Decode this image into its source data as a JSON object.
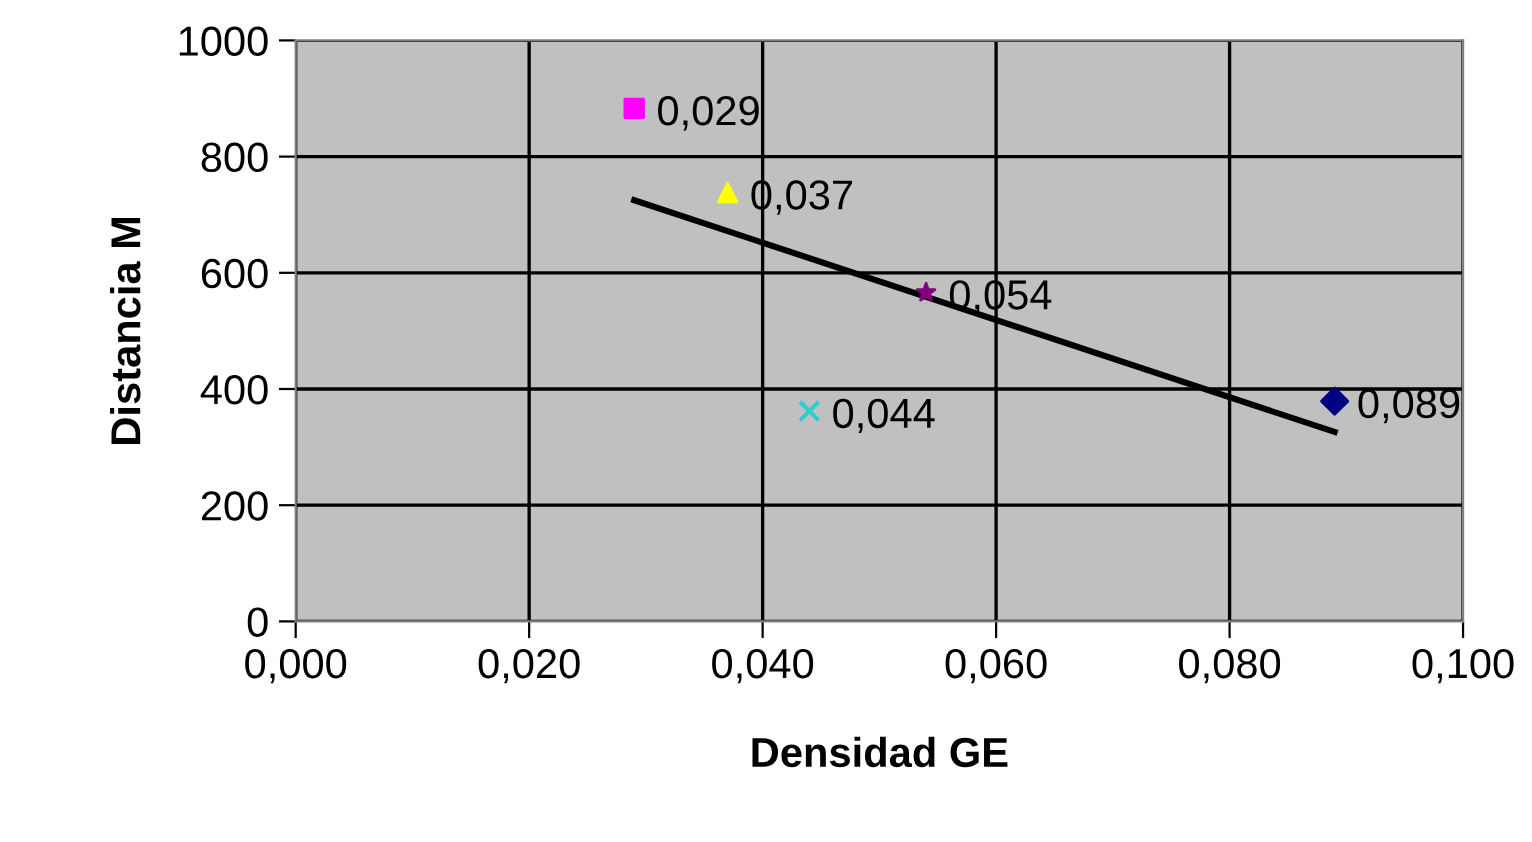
{
  "chart_data": {
    "type": "scatter",
    "xlabel": "Densidad GE",
    "ylabel": "Distancia M",
    "xlim": [
      0,
      0.1
    ],
    "ylim": [
      0,
      1000
    ],
    "xticks": [
      {
        "value": 0,
        "label": "0,000"
      },
      {
        "value": 0.02,
        "label": "0,020"
      },
      {
        "value": 0.04,
        "label": "0,040"
      },
      {
        "value": 0.06,
        "label": "0,060"
      },
      {
        "value": 0.08,
        "label": "0,080"
      },
      {
        "value": 0.1,
        "label": "0,100"
      }
    ],
    "yticks": [
      0,
      200,
      400,
      600,
      800,
      1000
    ],
    "grid": true,
    "series": [
      {
        "color": "#ff00ff",
        "marker": "square",
        "x": [
          0.029
        ],
        "values": [
          883
        ]
      },
      {
        "color": "#ffff00",
        "marker": "triangle",
        "x": [
          0.037
        ],
        "values": [
          738
        ]
      },
      {
        "color": "#800080",
        "marker": "star",
        "x": [
          0.054
        ],
        "values": [
          566
        ]
      },
      {
        "color": "#33cccc",
        "marker": "cross",
        "x": [
          0.044
        ],
        "values": [
          362
        ]
      },
      {
        "color": "#000080",
        "marker": "diamond",
        "x": [
          0.089
        ],
        "values": [
          379
        ]
      },
      {
        "type": "line",
        "color": "#000000",
        "marker": "none",
        "x": [
          0.029,
          0.089
        ],
        "values": [
          725,
          326
        ]
      }
    ],
    "annotations": [
      {
        "text": "0,029",
        "x": 0.029,
        "y": 883
      },
      {
        "text": "0,037",
        "x": 0.037,
        "y": 738
      },
      {
        "text": "0,054",
        "x": 0.054,
        "y": 566
      },
      {
        "text": "0,044",
        "x": 0.044,
        "y": 362
      },
      {
        "text": "0,089",
        "x": 0.089,
        "y": 379
      }
    ]
  }
}
